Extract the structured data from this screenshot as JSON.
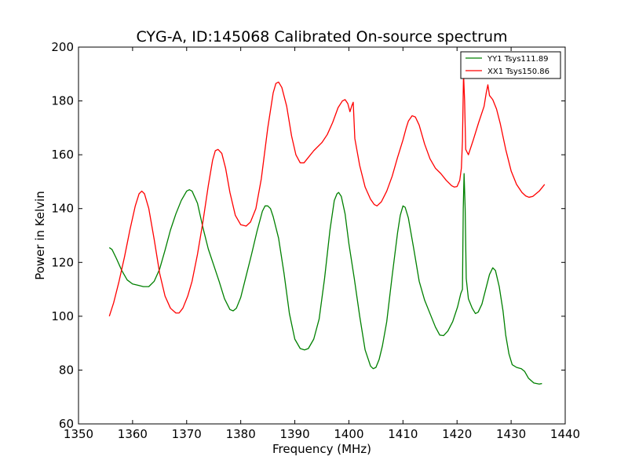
{
  "chart_data": {
    "type": "line",
    "title": "CYG-A, ID:145068 Calibrated On-source spectrum",
    "xlabel": "Frequency (MHz)",
    "ylabel": "Power in Kelvin",
    "xlim": [
      1350,
      1440
    ],
    "ylim": [
      60,
      200
    ],
    "x_ticks": [
      1350,
      1360,
      1370,
      1380,
      1390,
      1400,
      1410,
      1420,
      1430,
      1440
    ],
    "y_ticks": [
      60,
      80,
      100,
      120,
      140,
      160,
      180,
      200
    ],
    "grid": false,
    "legend_position": "top-right",
    "series": [
      {
        "name": "YY1 Tsys111.89",
        "color": "#008000",
        "points": [
          [
            1355.7,
            125.5
          ],
          [
            1356.2,
            124.8
          ],
          [
            1357,
            121.5
          ],
          [
            1358,
            117
          ],
          [
            1359,
            113.5
          ],
          [
            1360,
            112
          ],
          [
            1361,
            111.5
          ],
          [
            1362,
            111
          ],
          [
            1363,
            111
          ],
          [
            1364,
            113
          ],
          [
            1365,
            117.5
          ],
          [
            1366,
            124.5
          ],
          [
            1367,
            132
          ],
          [
            1368,
            138
          ],
          [
            1369,
            143
          ],
          [
            1370,
            146.5
          ],
          [
            1370.5,
            147
          ],
          [
            1371,
            146.5
          ],
          [
            1372,
            142
          ],
          [
            1373,
            133
          ],
          [
            1374,
            125
          ],
          [
            1375,
            119
          ],
          [
            1376,
            113
          ],
          [
            1377,
            106.5
          ],
          [
            1378,
            102.5
          ],
          [
            1378.6,
            102
          ],
          [
            1379.2,
            103
          ],
          [
            1380,
            107
          ],
          [
            1381,
            115
          ],
          [
            1382,
            123
          ],
          [
            1383,
            131.5
          ],
          [
            1384,
            139
          ],
          [
            1384.5,
            141
          ],
          [
            1385,
            141
          ],
          [
            1385.5,
            140
          ],
          [
            1386,
            137
          ],
          [
            1387,
            129
          ],
          [
            1388,
            116
          ],
          [
            1389,
            101
          ],
          [
            1390,
            91.5
          ],
          [
            1391,
            88
          ],
          [
            1391.8,
            87.5
          ],
          [
            1392.5,
            88
          ],
          [
            1393.5,
            91.5
          ],
          [
            1394.5,
            99
          ],
          [
            1395.5,
            114
          ],
          [
            1396.5,
            132
          ],
          [
            1397.3,
            143
          ],
          [
            1397.8,
            145.5
          ],
          [
            1398.1,
            146
          ],
          [
            1398.6,
            144.5
          ],
          [
            1399.3,
            138
          ],
          [
            1400,
            127
          ],
          [
            1401,
            114
          ],
          [
            1402,
            100
          ],
          [
            1403,
            87.5
          ],
          [
            1404,
            81.5
          ],
          [
            1404.5,
            80.5
          ],
          [
            1405,
            81
          ],
          [
            1405.6,
            84
          ],
          [
            1406.2,
            89
          ],
          [
            1407,
            98
          ],
          [
            1408,
            115
          ],
          [
            1409,
            131
          ],
          [
            1409.5,
            137.5
          ],
          [
            1410,
            141
          ],
          [
            1410.4,
            140.5
          ],
          [
            1411,
            136.5
          ],
          [
            1412,
            125
          ],
          [
            1413,
            113
          ],
          [
            1414,
            106
          ],
          [
            1415,
            101
          ],
          [
            1416,
            96
          ],
          [
            1416.8,
            93
          ],
          [
            1417.5,
            92.8
          ],
          [
            1418.3,
            94.5
          ],
          [
            1419.2,
            98
          ],
          [
            1420.1,
            103.5
          ],
          [
            1420.7,
            108.5
          ],
          [
            1421,
            110
          ],
          [
            1421.15,
            140
          ],
          [
            1421.3,
            153
          ],
          [
            1421.5,
            140
          ],
          [
            1421.7,
            114
          ],
          [
            1422.1,
            106.5
          ],
          [
            1422.8,
            103
          ],
          [
            1423.4,
            101
          ],
          [
            1423.9,
            101.5
          ],
          [
            1424.6,
            104.5
          ],
          [
            1425.3,
            110
          ],
          [
            1426,
            115.5
          ],
          [
            1426.6,
            118
          ],
          [
            1427.1,
            117
          ],
          [
            1427.8,
            111
          ],
          [
            1428.5,
            102
          ],
          [
            1429,
            93
          ],
          [
            1429.6,
            86
          ],
          [
            1430.2,
            82
          ],
          [
            1431,
            81
          ],
          [
            1431.9,
            80.5
          ],
          [
            1432.5,
            79.5
          ],
          [
            1433.2,
            77
          ],
          [
            1434.2,
            75.2
          ],
          [
            1435.2,
            74.8
          ],
          [
            1435.7,
            75
          ]
        ]
      },
      {
        "name": "XX1 Tsys150.86",
        "color": "#ff0000",
        "points": [
          [
            1355.7,
            100
          ],
          [
            1356.5,
            105
          ],
          [
            1357.5,
            113
          ],
          [
            1358.5,
            122
          ],
          [
            1359.5,
            132
          ],
          [
            1360.5,
            141
          ],
          [
            1361.2,
            145.5
          ],
          [
            1361.7,
            146.5
          ],
          [
            1362.2,
            145.5
          ],
          [
            1363,
            140
          ],
          [
            1364,
            128.5
          ],
          [
            1365,
            116
          ],
          [
            1366,
            107.5
          ],
          [
            1367,
            103
          ],
          [
            1368,
            101.2
          ],
          [
            1368.6,
            101.2
          ],
          [
            1369.3,
            103
          ],
          [
            1370.2,
            107.5
          ],
          [
            1371,
            113
          ],
          [
            1372,
            123
          ],
          [
            1373,
            135
          ],
          [
            1374,
            148.5
          ],
          [
            1374.8,
            158
          ],
          [
            1375.3,
            161.5
          ],
          [
            1375.8,
            162
          ],
          [
            1376.5,
            160.5
          ],
          [
            1377.2,
            155
          ],
          [
            1378,
            146
          ],
          [
            1379,
            137.5
          ],
          [
            1380,
            134
          ],
          [
            1381,
            133.5
          ],
          [
            1381.8,
            135
          ],
          [
            1382.8,
            140
          ],
          [
            1383.8,
            151
          ],
          [
            1385,
            170
          ],
          [
            1386,
            183
          ],
          [
            1386.5,
            186.5
          ],
          [
            1387,
            187
          ],
          [
            1387.6,
            185
          ],
          [
            1388.5,
            178
          ],
          [
            1389.4,
            167
          ],
          [
            1390.2,
            160
          ],
          [
            1391,
            157
          ],
          [
            1391.7,
            157
          ],
          [
            1392.5,
            159
          ],
          [
            1393.5,
            161.5
          ],
          [
            1395,
            164.5
          ],
          [
            1396,
            167.5
          ],
          [
            1397,
            172
          ],
          [
            1398,
            177.5
          ],
          [
            1398.8,
            180
          ],
          [
            1399.3,
            180.5
          ],
          [
            1399.8,
            179
          ],
          [
            1400.2,
            176
          ],
          [
            1400.5,
            178
          ],
          [
            1400.8,
            179.5
          ],
          [
            1401.1,
            166
          ],
          [
            1402,
            156
          ],
          [
            1403,
            148
          ],
          [
            1404,
            143.5
          ],
          [
            1404.7,
            141.5
          ],
          [
            1405.2,
            141
          ],
          [
            1406,
            142.5
          ],
          [
            1407,
            146.5
          ],
          [
            1408,
            152
          ],
          [
            1409,
            159
          ],
          [
            1410,
            165.5
          ],
          [
            1410.6,
            170
          ],
          [
            1411,
            172.5
          ],
          [
            1411.7,
            174.5
          ],
          [
            1412.3,
            174
          ],
          [
            1413,
            171
          ],
          [
            1414,
            164
          ],
          [
            1415,
            158.5
          ],
          [
            1416,
            155
          ],
          [
            1417,
            153
          ],
          [
            1418,
            150.5
          ],
          [
            1419,
            148.5
          ],
          [
            1419.5,
            148
          ],
          [
            1420,
            148.2
          ],
          [
            1420.5,
            150.5
          ],
          [
            1420.8,
            155
          ],
          [
            1421,
            165
          ],
          [
            1421.2,
            190
          ],
          [
            1421.4,
            180
          ],
          [
            1421.6,
            162
          ],
          [
            1422.1,
            160
          ],
          [
            1423,
            165.5
          ],
          [
            1424,
            172
          ],
          [
            1425,
            178
          ],
          [
            1425.4,
            183
          ],
          [
            1425.7,
            186
          ],
          [
            1426,
            182
          ],
          [
            1426.6,
            180.5
          ],
          [
            1427.3,
            177
          ],
          [
            1428,
            171.5
          ],
          [
            1429,
            162
          ],
          [
            1430,
            154
          ],
          [
            1431,
            149
          ],
          [
            1432,
            146
          ],
          [
            1432.7,
            144.7
          ],
          [
            1433.3,
            144.2
          ],
          [
            1434,
            144.5
          ],
          [
            1435.2,
            146.5
          ],
          [
            1435.8,
            148
          ],
          [
            1436.2,
            149
          ]
        ]
      }
    ]
  }
}
